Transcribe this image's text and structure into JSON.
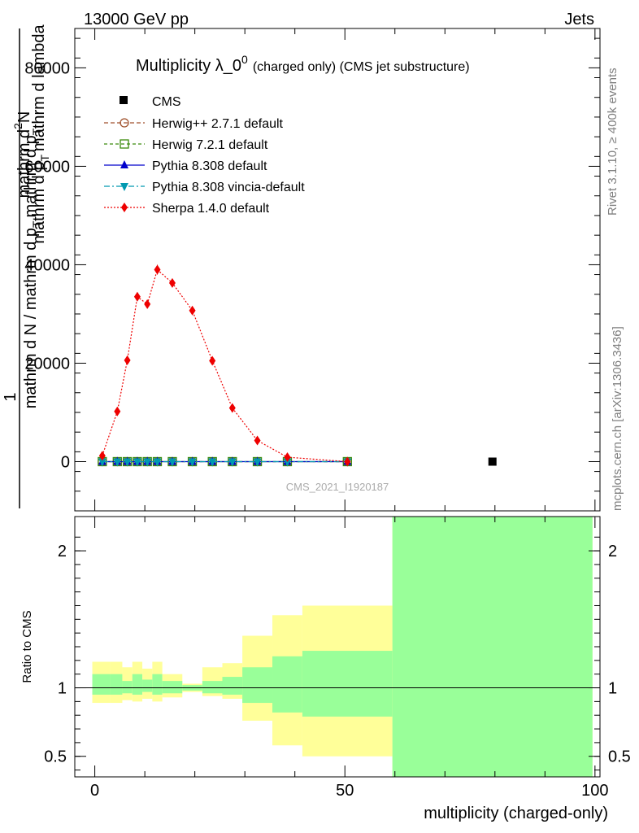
{
  "header": {
    "energy": "13000 GeV pp",
    "category": "Jets"
  },
  "side_labels": {
    "rivet": "Rivet 3.1.10, ≥ 400k events",
    "mcplots": "mcplots.cern.ch [arXiv:1306.3436]"
  },
  "watermark": "CMS_2021_I1920187",
  "chart_data": {
    "type": "line",
    "title": "Multiplicity λ_0",
    "title_sup": "0",
    "title_suffix": "(charged only) (CMS jet substructure)",
    "xlabel": "multiplicity (charged-only)",
    "ylabel_parts": [
      "1",
      "mathrm d N / mathrm d p_T mathrm d p_T mathrm d lambda",
      "mathrm d²N",
      "mathrm d p_T mathrm d lambda"
    ],
    "ylabel_over": "1",
    "ylabel_under": "mathrm d N / mathrm d p",
    "ylabel_sub_t": "T",
    "ylabel_numer_1": "mathrm d",
    "ylabel_numer_2": "N",
    "ylabel_numer_sup": "2",
    "ylabel_mid": "mathrm d p",
    "ylabel_mid_sub": "T",
    "ylabel_mid2": "mathrm d lambda",
    "ylabel_over_mid": "mathrm d p",
    "ylabel_over_mid2": "mathrm d p",
    "ratio_ylabel": "Ratio to CMS",
    "xlim": [
      -4,
      101
    ],
    "ylim": [
      -10000,
      88000
    ],
    "ratio_ylim": [
      0.35,
      2.25
    ],
    "x_ticks": [
      0,
      50,
      100
    ],
    "x_tick_labels": [
      "0",
      "50",
      "100"
    ],
    "y_ticks": [
      0,
      20000,
      40000,
      60000,
      80000
    ],
    "y_tick_labels": [
      "0",
      "20000",
      "40000",
      "60000",
      "80000"
    ],
    "ratio_ticks": [
      0.5,
      1,
      2
    ],
    "ratio_tick_labels": [
      "0.5",
      "1",
      "2"
    ],
    "x": [
      1.5,
      4.5,
      6.5,
      8.5,
      10.5,
      12.5,
      15.5,
      19.5,
      23.5,
      27.5,
      32.5,
      38.5,
      50.5
    ],
    "data": {
      "name": "CMS",
      "x": [
        79.5
      ],
      "y": [
        0
      ]
    },
    "series": [
      {
        "name": "Herwig++ 2.7.1 default",
        "color": "#a0522d",
        "marker": "circle-open",
        "dash": "5,3",
        "values": [
          0,
          0,
          0,
          0,
          0,
          0,
          0,
          0,
          0,
          0,
          0,
          0,
          0
        ]
      },
      {
        "name": "Herwig 7.2.1 default",
        "color": "#3b8a0c",
        "marker": "square-open",
        "dash": "4,3",
        "values": [
          0,
          0,
          0,
          0,
          0,
          0,
          0,
          0,
          0,
          0,
          0,
          0,
          0
        ]
      },
      {
        "name": "Pythia 8.308 default",
        "color": "#0000cc",
        "marker": "triangle-up",
        "dash": "",
        "values": [
          0,
          0,
          0,
          0,
          0,
          0,
          0,
          0,
          0,
          0,
          0,
          0,
          0
        ]
      },
      {
        "name": "Pythia 8.308 vincia-default",
        "color": "#0099b0",
        "marker": "triangle-down",
        "dash": "7,3,2,3",
        "values": [
          0,
          0,
          0,
          0,
          0,
          0,
          0,
          0,
          0,
          0,
          0,
          0,
          0
        ]
      },
      {
        "name": "Sherpa 1.4.0 default",
        "color": "#ee0000",
        "marker": "diamond",
        "dash": "2,2",
        "values": [
          1200,
          10200,
          20600,
          33500,
          32000,
          39000,
          36300,
          30700,
          20500,
          10900,
          4300,
          900,
          0
        ],
        "errors": [
          400,
          500,
          600,
          900,
          800,
          1000,
          800,
          700,
          500,
          400,
          300,
          200,
          100
        ]
      }
    ],
    "ratio_bands": [
      {
        "x0": -0.5,
        "x1": 3,
        "yellow": [
          0.89,
          1.19
        ],
        "green": [
          0.95,
          1.1
        ]
      },
      {
        "x0": 3,
        "x1": 5.5,
        "yellow": [
          0.89,
          1.19
        ],
        "green": [
          0.95,
          1.1
        ]
      },
      {
        "x0": 5.5,
        "x1": 7.5,
        "yellow": [
          0.91,
          1.15
        ],
        "green": [
          0.96,
          1.05
        ]
      },
      {
        "x0": 7.5,
        "x1": 9.5,
        "yellow": [
          0.9,
          1.19
        ],
        "green": [
          0.95,
          1.1
        ]
      },
      {
        "x0": 9.5,
        "x1": 11.5,
        "yellow": [
          0.92,
          1.14
        ],
        "green": [
          0.97,
          1.06
        ]
      },
      {
        "x0": 11.5,
        "x1": 13.5,
        "yellow": [
          0.9,
          1.19
        ],
        "green": [
          0.95,
          1.1
        ]
      },
      {
        "x0": 13.5,
        "x1": 17.5,
        "yellow": [
          0.93,
          1.1
        ],
        "green": [
          0.96,
          1.05
        ]
      },
      {
        "x0": 17.5,
        "x1": 21.5,
        "yellow": [
          0.97,
          1.03
        ],
        "green": [
          0.98,
          1.02
        ]
      },
      {
        "x0": 21.5,
        "x1": 25.5,
        "yellow": [
          0.94,
          1.15
        ],
        "green": [
          0.96,
          1.05
        ]
      },
      {
        "x0": 25.5,
        "x1": 29.5,
        "yellow": [
          0.92,
          1.18
        ],
        "green": [
          0.95,
          1.08
        ]
      },
      {
        "x0": 29.5,
        "x1": 35.5,
        "yellow": [
          0.76,
          1.38
        ],
        "green": [
          0.89,
          1.15
        ]
      },
      {
        "x0": 35.5,
        "x1": 41.5,
        "yellow": [
          0.58,
          1.53
        ],
        "green": [
          0.82,
          1.23
        ]
      },
      {
        "x0": 41.5,
        "x1": 59.5,
        "yellow": [
          0.5,
          1.6
        ],
        "green": [
          0.79,
          1.27
        ]
      },
      {
        "x0": 59.5,
        "x1": 99.5,
        "yellow": [
          0.35,
          2.25
        ],
        "green": [
          0.35,
          2.25
        ]
      }
    ]
  }
}
